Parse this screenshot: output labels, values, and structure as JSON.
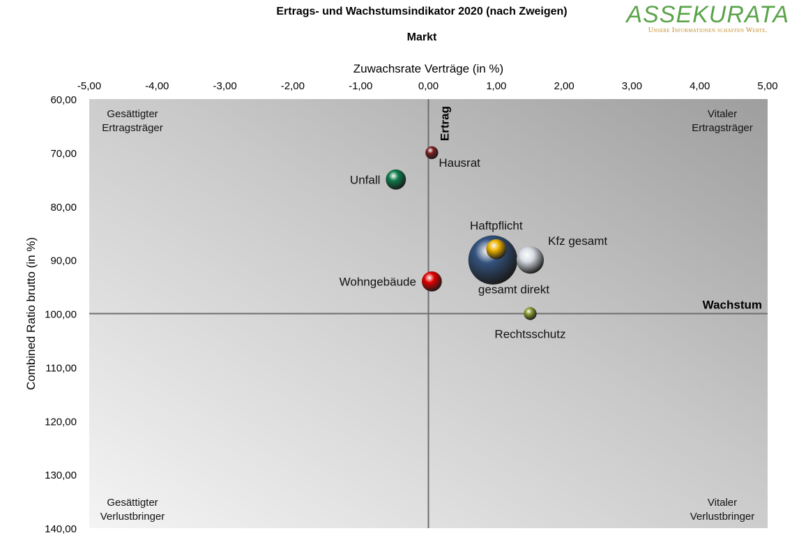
{
  "header": {
    "title": "Ertrags- und Wachstumsindikator 2020 (nach Zweigen)",
    "subtitle": "Markt"
  },
  "logo": {
    "name": "ASSEKURATA",
    "tagline": "Unsere Informationen schaffen Werte.",
    "color": "#5aa34a",
    "tagline_color": "#c48a2a"
  },
  "chart_data": {
    "type": "scatter",
    "title": "Ertrags- und Wachstumsindikator 2020 (nach Zweigen)",
    "subtitle": "Markt",
    "xlabel": "Zuwachsrate Verträge (in %)",
    "ylabel": "Combined Ratio brutto (in %)",
    "xlim": [
      -5,
      5
    ],
    "ylim": [
      60,
      140
    ],
    "y_reversed": true,
    "x_axis_position": "top",
    "x_ticks": [
      "-5,00",
      "-4,00",
      "-3,00",
      "-2,00",
      "-1,00",
      "0,00",
      "1,00",
      "2,00",
      "3,00",
      "4,00",
      "5,00"
    ],
    "y_ticks": [
      "60,00",
      "70,00",
      "80,00",
      "90,00",
      "100,00",
      "110,00",
      "120,00",
      "130,00",
      "140,00"
    ],
    "reference_lines": [
      {
        "axis": "x",
        "value": 0,
        "label": "Ertrag"
      },
      {
        "axis": "y",
        "value": 100,
        "label": "Wachstum"
      }
    ],
    "quadrant_labels": [
      {
        "position": "top-left",
        "line1": "Gesättigter",
        "line2": "Ertragsträger"
      },
      {
        "position": "top-right",
        "line1": "Vitaler",
        "line2": "Ertragsträger"
      },
      {
        "position": "bottom-left",
        "line1": "Gesättigter",
        "line2": "Verlustbringer"
      },
      {
        "position": "bottom-right",
        "line1": "Vitaler",
        "line2": "Verlustbringer"
      }
    ],
    "series": [
      {
        "name": "Hausrat",
        "x": 0.05,
        "y": 70.0,
        "size": 1,
        "color": "#7a1f1f",
        "label_pos": "below-right"
      },
      {
        "name": "Unfall",
        "x": -0.48,
        "y": 75.0,
        "size": 2,
        "color": "#0e7a4a",
        "label_pos": "left"
      },
      {
        "name": "Haftpflicht",
        "x": 1.0,
        "y": 88.0,
        "size": 2,
        "color": "#f0b400",
        "label_pos": "above"
      },
      {
        "name": "Kfz gesamt",
        "x": 1.5,
        "y": 90.0,
        "size": 3,
        "color": "#d8dde4",
        "label_pos": "above-right"
      },
      {
        "name": "gesamt direkt",
        "x": 0.95,
        "y": 90.0,
        "size": 6,
        "color": "#34527d",
        "label_pos": "below-right"
      },
      {
        "name": "Wohngebäude",
        "x": 0.05,
        "y": 94.0,
        "size": 2,
        "color": "#e00000",
        "label_pos": "left"
      },
      {
        "name": "Rechtsschutz",
        "x": 1.5,
        "y": 100.0,
        "size": 1,
        "color": "#8a9a30",
        "label_pos": "below"
      }
    ]
  }
}
